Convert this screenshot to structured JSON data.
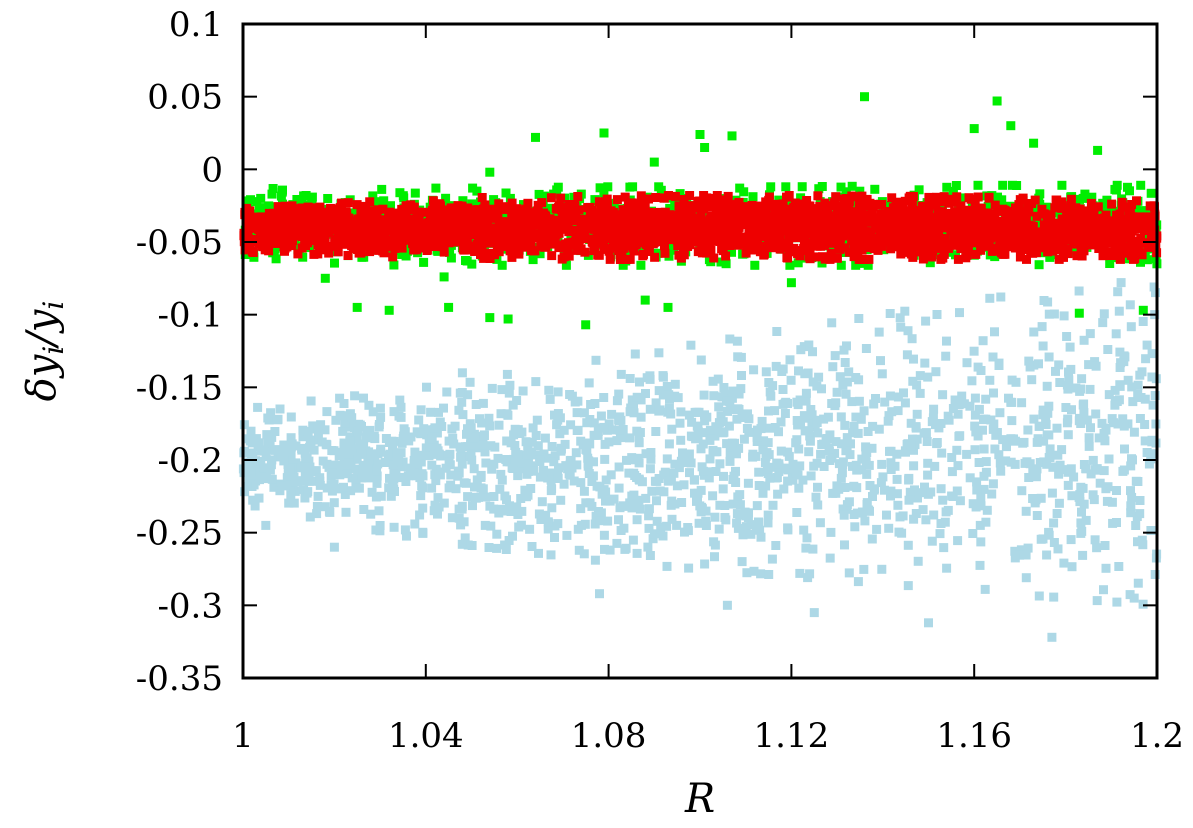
{
  "chart_data": {
    "type": "scatter",
    "title": "",
    "xlabel": "R",
    "ylabel": "δy_i/y_i",
    "xlim": [
      1.0,
      1.2
    ],
    "ylim": [
      -0.35,
      0.1
    ],
    "xticks": [
      "1",
      "1.04",
      "1.08",
      "1.12",
      "1.16",
      "1.2"
    ],
    "xtick_values": [
      1.0,
      1.04,
      1.08,
      1.12,
      1.16,
      1.2
    ],
    "yticks": [
      "0.1",
      "0.05",
      "0",
      "-0.05",
      "-0.1",
      "-0.15",
      "-0.2",
      "-0.25",
      "-0.3",
      "-0.35"
    ],
    "ytick_values": [
      0.1,
      0.05,
      0.0,
      -0.05,
      -0.1,
      -0.15,
      -0.2,
      -0.25,
      -0.3,
      -0.35
    ],
    "grid": false,
    "legend": "none",
    "series": [
      {
        "color": "#add8e6",
        "band": {
          "x": [
            1.0,
            1.04,
            1.08,
            1.12,
            1.16,
            1.2
          ],
          "y_lower": [
            -0.23,
            -0.255,
            -0.27,
            -0.28,
            -0.29,
            -0.3
          ],
          "y_upper": [
            -0.165,
            -0.15,
            -0.13,
            -0.11,
            -0.09,
            -0.075
          ]
        },
        "outliers": [
          {
            "x": 1.005,
            "y": -0.245
          },
          {
            "x": 1.02,
            "y": -0.26
          },
          {
            "x": 1.048,
            "y": -0.14
          },
          {
            "x": 1.078,
            "y": -0.292
          },
          {
            "x": 1.106,
            "y": -0.3
          },
          {
            "x": 1.125,
            "y": -0.305
          },
          {
            "x": 1.15,
            "y": -0.312
          },
          {
            "x": 1.177,
            "y": -0.322
          },
          {
            "x": 1.195,
            "y": -0.295
          }
        ]
      },
      {
        "color": "#00ee00",
        "band": {
          "x": [
            1.0,
            1.04,
            1.08,
            1.12,
            1.16,
            1.2
          ],
          "y_lower": [
            -0.065,
            -0.066,
            -0.066,
            -0.066,
            -0.066,
            -0.065
          ],
          "y_upper": [
            -0.012,
            -0.013,
            -0.012,
            -0.012,
            -0.011,
            -0.011
          ]
        },
        "outliers": [
          {
            "x": 1.064,
            "y": 0.022
          },
          {
            "x": 1.079,
            "y": 0.025
          },
          {
            "x": 1.1,
            "y": 0.024
          },
          {
            "x": 1.101,
            "y": 0.015
          },
          {
            "x": 1.107,
            "y": 0.023
          },
          {
            "x": 1.136,
            "y": 0.05
          },
          {
            "x": 1.165,
            "y": 0.047
          },
          {
            "x": 1.16,
            "y": 0.028
          },
          {
            "x": 1.168,
            "y": 0.03
          },
          {
            "x": 1.173,
            "y": 0.018
          },
          {
            "x": 1.187,
            "y": 0.013
          },
          {
            "x": 1.054,
            "y": -0.002
          },
          {
            "x": 1.09,
            "y": 0.005
          },
          {
            "x": 1.025,
            "y": -0.095
          },
          {
            "x": 1.032,
            "y": -0.097
          },
          {
            "x": 1.045,
            "y": -0.095
          },
          {
            "x": 1.054,
            "y": -0.102
          },
          {
            "x": 1.058,
            "y": -0.103
          },
          {
            "x": 1.075,
            "y": -0.107
          },
          {
            "x": 1.088,
            "y": -0.09
          },
          {
            "x": 1.093,
            "y": -0.095
          },
          {
            "x": 1.183,
            "y": -0.099
          },
          {
            "x": 1.197,
            "y": -0.097
          },
          {
            "x": 1.018,
            "y": -0.075
          },
          {
            "x": 1.044,
            "y": -0.074
          },
          {
            "x": 1.12,
            "y": -0.078
          }
        ]
      },
      {
        "color": "#ee0000",
        "band": {
          "x": [
            1.0,
            1.04,
            1.08,
            1.12,
            1.16,
            1.2
          ],
          "y_lower": [
            -0.057,
            -0.061,
            -0.062,
            -0.062,
            -0.062,
            -0.062
          ],
          "y_upper": [
            -0.027,
            -0.02,
            -0.018,
            -0.018,
            -0.019,
            -0.022
          ]
        },
        "outliers": []
      }
    ]
  }
}
